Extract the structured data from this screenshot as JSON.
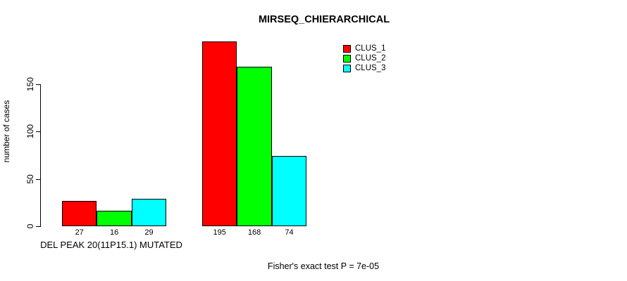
{
  "chart_data": {
    "type": "bar",
    "title": "MIRSEQ_CHIERARCHICAL",
    "ylabel": "number of cases",
    "xlabel": "DEL PEAK 20(11P15.1) MUTATED",
    "annotation": "Fisher's exact test P = 7e-05",
    "yticks": [
      0,
      50,
      100,
      150
    ],
    "ylim": [
      0,
      150
    ],
    "grid": false,
    "legend_position": "top-right",
    "bar_value_labels_shown": true,
    "background_color": "#FFFFFF",
    "axis_color": "#000000",
    "text_color": "#000000",
    "bar_border_color": "#000000",
    "series": [
      {
        "name": "CLUS_1",
        "color": "#FF0000"
      },
      {
        "name": "CLUS_2",
        "color": "#00FF00"
      },
      {
        "name": "CLUS_3",
        "color": "#00FFFF"
      }
    ],
    "groups": [
      {
        "label": "DEL PEAK 20(11P15.1) MUTATED",
        "values": [
          27,
          16,
          29
        ]
      },
      {
        "label": "",
        "values": [
          195,
          168,
          74
        ]
      }
    ]
  }
}
